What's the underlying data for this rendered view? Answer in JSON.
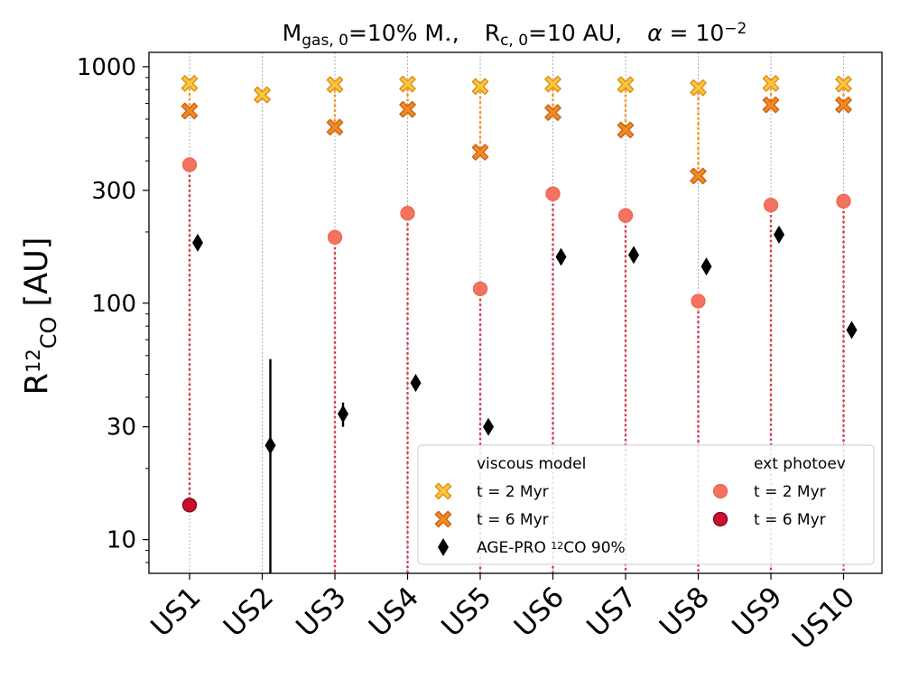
{
  "chart_data": {
    "type": "scatter",
    "title_parts": {
      "m": "M",
      "m_sub": "gas, 0",
      "m_eq": "=10% M",
      "m_star": "⋆",
      "comma1": ",",
      "r": "R",
      "r_sub": "c, 0",
      "r_eq": "=10 AU,",
      "alpha": "α",
      "alpha_eq": " = 10",
      "alpha_exp": "−2"
    },
    "ylabel_parts": {
      "r": "R",
      "sup": "12",
      "sub": "CO",
      "unit": " [AU]"
    },
    "yscale": "log",
    "ylim": [
      7.2,
      1150
    ],
    "ytick_values": [
      10,
      30,
      100,
      300,
      1000
    ],
    "ytick_labels": [
      "10",
      "30",
      "100",
      "300",
      "1000"
    ],
    "categories": [
      "US1",
      "US2",
      "US3",
      "US4",
      "US5",
      "US6",
      "US7",
      "US8",
      "US9",
      "US10"
    ],
    "series": [
      {
        "key": "visc2",
        "values": [
          850,
          760,
          840,
          845,
          825,
          845,
          840,
          815,
          850,
          845
        ]
      },
      {
        "key": "visc6",
        "values": [
          650,
          760,
          555,
          660,
          435,
          640,
          540,
          345,
          690,
          690
        ]
      },
      {
        "key": "ext2",
        "values": [
          385,
          null,
          190,
          240,
          115,
          290,
          235,
          102,
          260,
          270
        ]
      },
      {
        "key": "ext6",
        "values": [
          14,
          null,
          null,
          null,
          null,
          null,
          null,
          null,
          null,
          null
        ]
      },
      {
        "key": "agepro",
        "values": [
          180,
          25,
          34,
          46,
          30,
          157,
          160,
          143,
          195,
          77
        ]
      }
    ],
    "agepro_error": [
      {
        "index": 1,
        "low": 7.2,
        "high": 58
      },
      {
        "index": 2,
        "low": 30,
        "high": 38
      }
    ],
    "legend": {
      "placement": "lower-right",
      "viscous_header": "viscous model",
      "viscous_t2": "t = 2 Myr",
      "viscous_t6": "t = 6 Myr",
      "agepro_label": "AGE-PRO ",
      "agepro_sup": "12",
      "agepro_label_end": "CO 90%",
      "ext_header": "ext photoev",
      "ext_t2": "t = 2 Myr",
      "ext_t6": "t = 6 Myr"
    },
    "colors": {
      "visc2_fill": "#f8c83a",
      "visc2_edge": "#e08b1b",
      "visc6_fill": "#f38a1f",
      "visc6_edge": "#c9631a",
      "ext2_fill": "#f37360",
      "ext2_edge": "#ef6552",
      "ext6_fill": "#c8102e",
      "ext6_edge": "#8b0015",
      "agepro": "#000000",
      "visc_link": "#ff8c00",
      "ext_link": "#dc3045"
    },
    "grid": "vertical dotted grey per category"
  }
}
